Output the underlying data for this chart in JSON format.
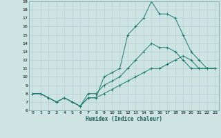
{
  "xlabel": "Humidex (Indice chaleur)",
  "ylabel": "",
  "xlim": [
    -0.5,
    23.5
  ],
  "ylim": [
    6,
    19
  ],
  "xticks": [
    0,
    1,
    2,
    3,
    4,
    5,
    6,
    7,
    8,
    9,
    10,
    11,
    12,
    13,
    14,
    15,
    16,
    17,
    18,
    19,
    20,
    21,
    22,
    23
  ],
  "yticks": [
    6,
    7,
    8,
    9,
    10,
    11,
    12,
    13,
    14,
    15,
    16,
    17,
    18,
    19
  ],
  "bg_color": "#cde4e2",
  "grid_color": "#b8d4d2",
  "line_color": "#1a7a6e",
  "line1_x": [
    0,
    1,
    2,
    3,
    4,
    5,
    6,
    7,
    8,
    9,
    10,
    11,
    12,
    13,
    14,
    15,
    16,
    17,
    18,
    19,
    20,
    21,
    22,
    23
  ],
  "line1_y": [
    8,
    8,
    7.5,
    7,
    7.5,
    7,
    6.5,
    7.5,
    7.5,
    10,
    10.5,
    11,
    15,
    16,
    17,
    19,
    17.5,
    17.5,
    17,
    15,
    13,
    12,
    11,
    11
  ],
  "line2_x": [
    0,
    1,
    2,
    3,
    4,
    5,
    6,
    7,
    8,
    9,
    10,
    11,
    12,
    13,
    14,
    15,
    16,
    17,
    18,
    19,
    20,
    21,
    22,
    23
  ],
  "line2_y": [
    8,
    8,
    7.5,
    7,
    7.5,
    7,
    6.5,
    8,
    8,
    9,
    9.5,
    10,
    11,
    12,
    13,
    14,
    13.5,
    13.5,
    13,
    12,
    11,
    11,
    11,
    11
  ],
  "line3_x": [
    0,
    1,
    2,
    3,
    4,
    5,
    6,
    7,
    8,
    9,
    10,
    11,
    12,
    13,
    14,
    15,
    16,
    17,
    18,
    19,
    20,
    21,
    22,
    23
  ],
  "line3_y": [
    8,
    8,
    7.5,
    7,
    7.5,
    7,
    6.5,
    7.5,
    7.5,
    8,
    8.5,
    9,
    9.5,
    10,
    10.5,
    11,
    11,
    11.5,
    12,
    12.5,
    12,
    11,
    11,
    11
  ]
}
